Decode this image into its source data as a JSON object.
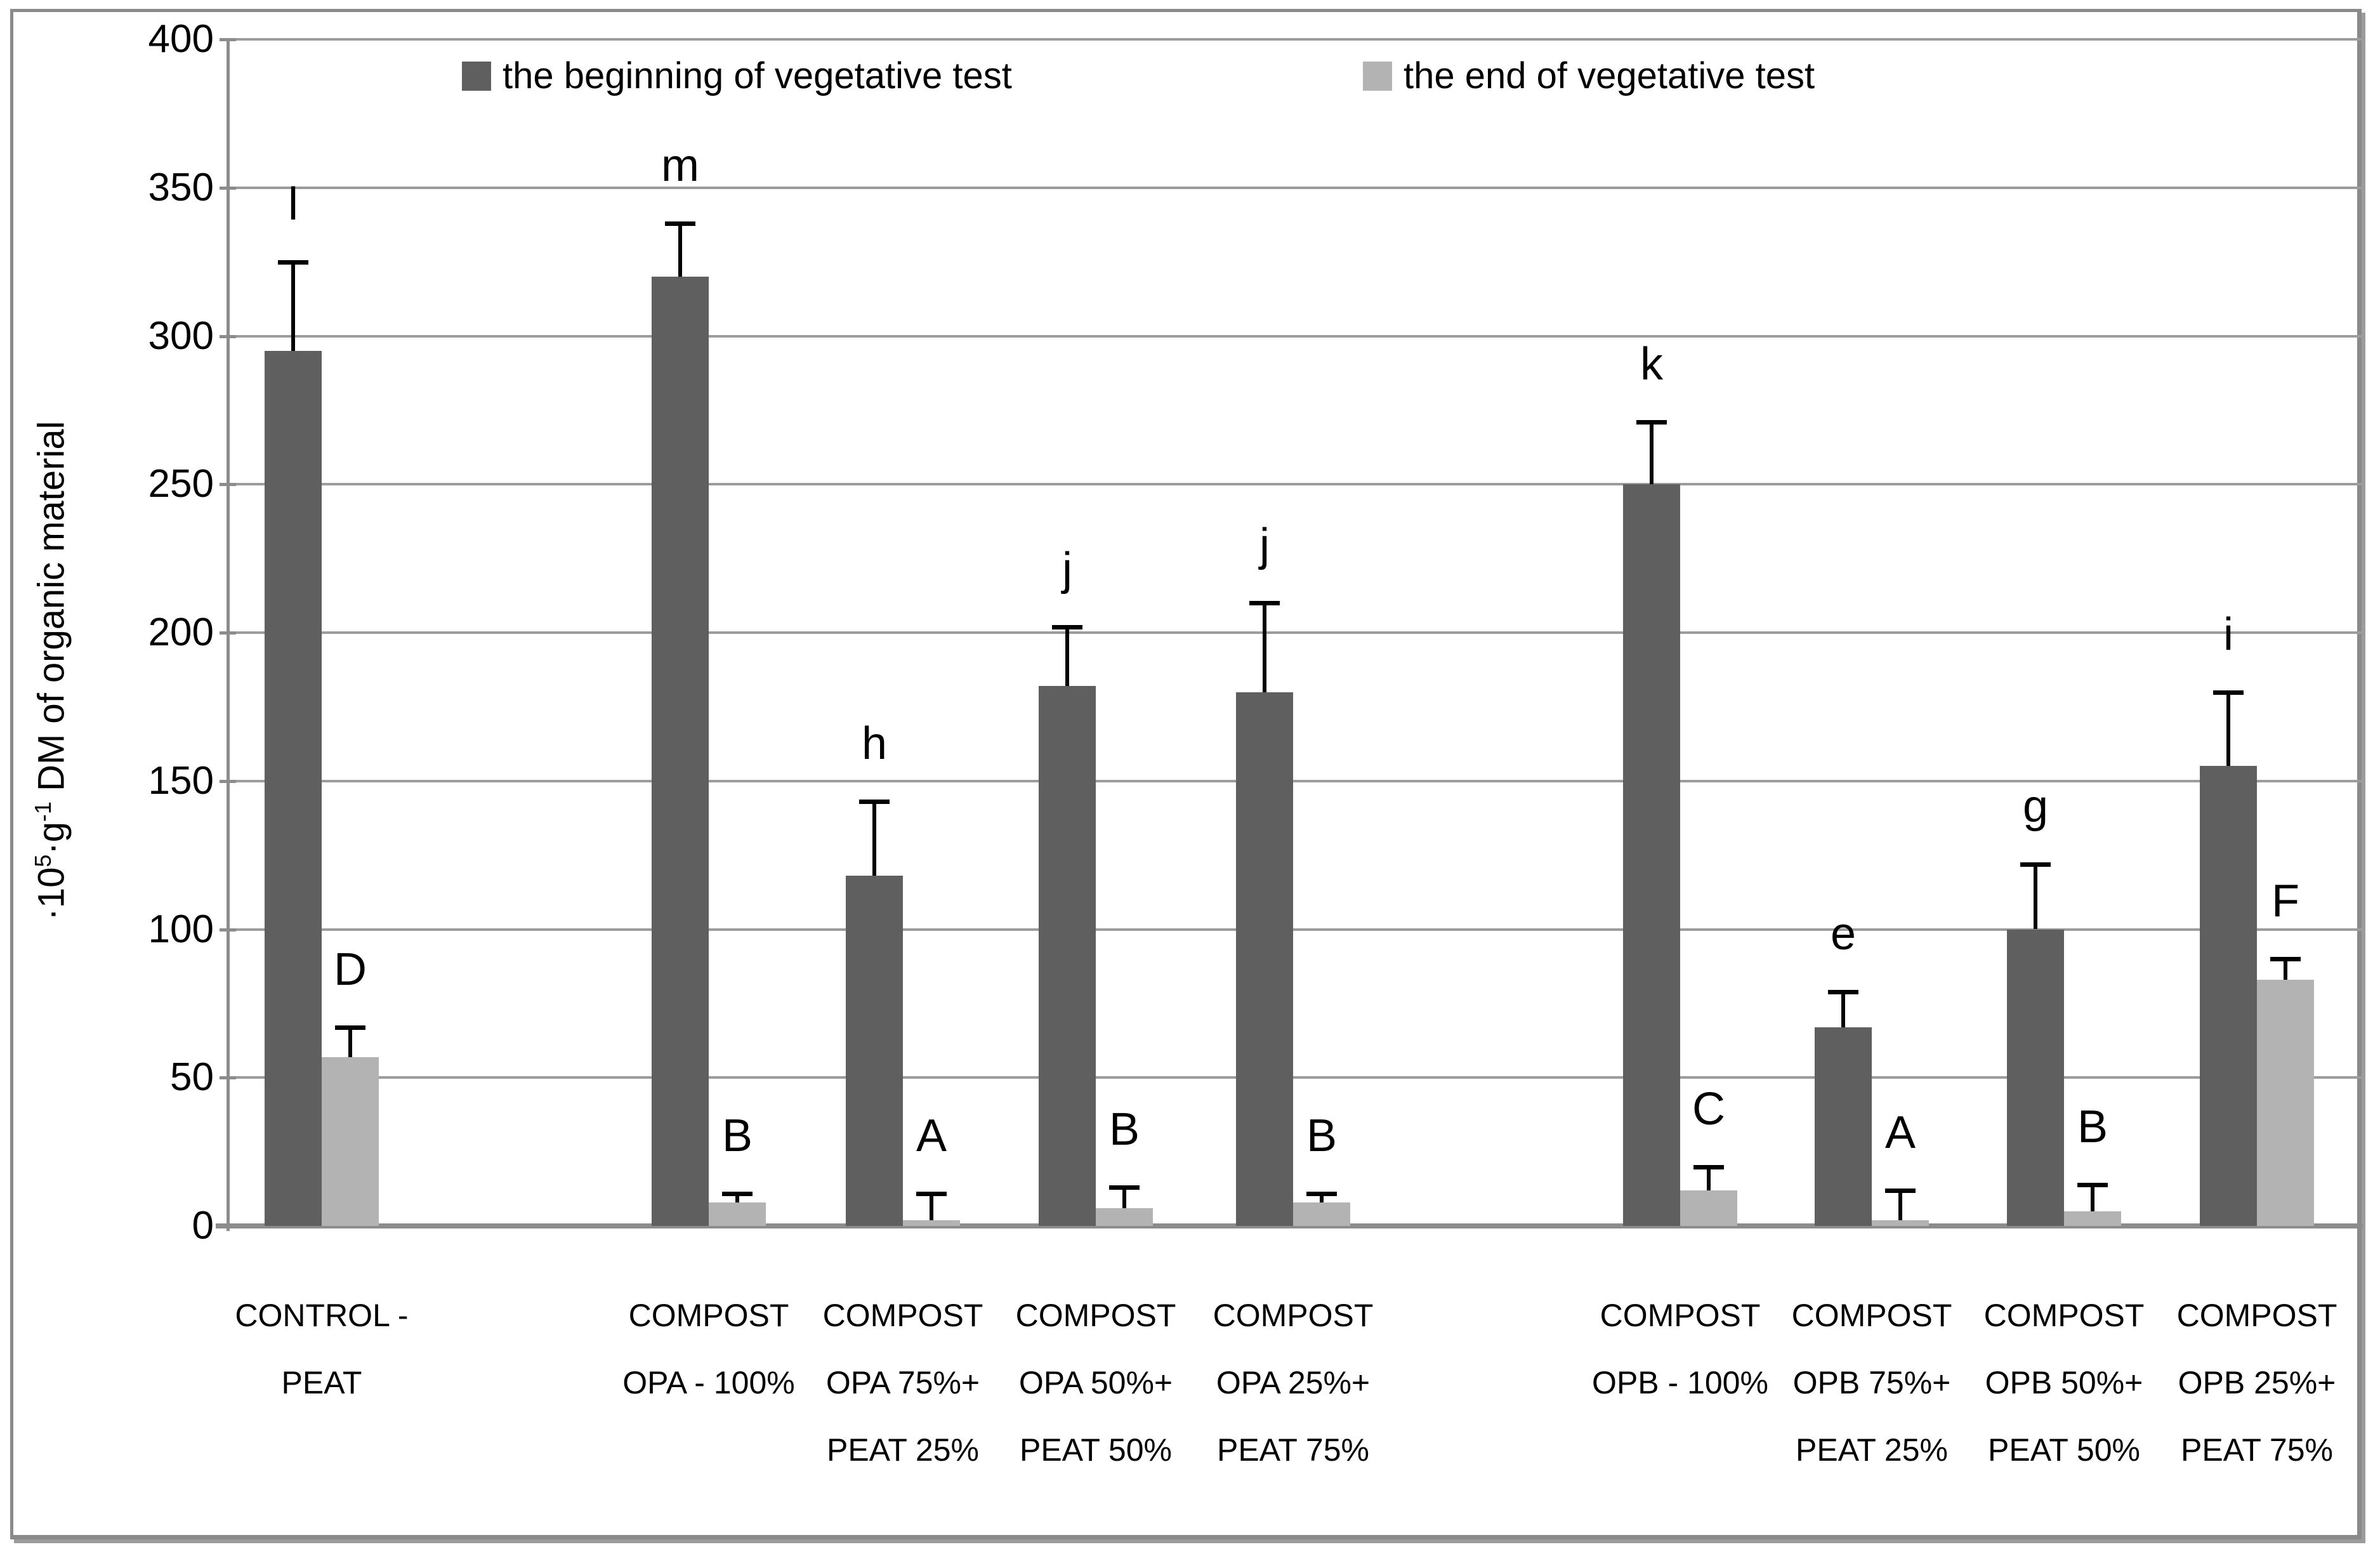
{
  "figure": {
    "background": "#ffffff",
    "frame_color": "#8a8a8a"
  },
  "y_axis": {
    "title": "·10⁵·g⁻¹ DM of organic material",
    "title_parts": {
      "prefix": "·10",
      "sup1": "5",
      "mid": "·g",
      "sup2": "-1",
      "suffix": " DM of organic material"
    },
    "ticks": [
      0,
      50,
      100,
      150,
      200,
      250,
      300,
      350,
      400
    ],
    "max": 400
  },
  "legend": {
    "items": [
      {
        "label": "the beginning of vegetative test",
        "color": "#5f5f5f"
      },
      {
        "label": "the end of vegetative test",
        "color": "#b3b3b3"
      }
    ]
  },
  "chart_data": {
    "type": "bar",
    "title": "",
    "xlabel": "",
    "ylabel": "·10⁵·g⁻¹ DM of organic material",
    "ylim": [
      0,
      400
    ],
    "grid": true,
    "legend_position": "top",
    "categories": [
      {
        "lines": [
          "CONTROL -",
          "PEAT"
        ]
      },
      {
        "lines": [
          "COMPOST",
          "OPA - 100%"
        ]
      },
      {
        "lines": [
          "COMPOST",
          "OPA 75%+",
          "PEAT 25%"
        ]
      },
      {
        "lines": [
          "COMPOST",
          "OPA 50%+",
          "PEAT 50%"
        ]
      },
      {
        "lines": [
          "COMPOST",
          "OPA 25%+",
          "PEAT 75%"
        ]
      },
      {
        "lines": [
          "COMPOST",
          "OPB - 100%"
        ]
      },
      {
        "lines": [
          "COMPOST",
          "OPB 75%+",
          "PEAT 25%"
        ]
      },
      {
        "lines": [
          "COMPOST",
          "OPB 50%+",
          "PEAT 50%"
        ]
      },
      {
        "lines": [
          "COMPOST",
          "OPB 25%+",
          "PEAT 75%"
        ]
      }
    ],
    "series": [
      {
        "name": "the beginning of vegetative test",
        "color": "#5f5f5f",
        "values": [
          295,
          320,
          118,
          182,
          180,
          250,
          67,
          100,
          155
        ],
        "error_plus": [
          30,
          18,
          25,
          20,
          30,
          21,
          12,
          22,
          25
        ],
        "letters": [
          "l",
          "m",
          "h",
          "j",
          "j",
          "k",
          "e",
          "g",
          "i"
        ]
      },
      {
        "name": "the end of vegetative test",
        "color": "#b3b3b3",
        "values": [
          57,
          8,
          2,
          6,
          8,
          12,
          2,
          5,
          83
        ],
        "error_plus": [
          10,
          3,
          9,
          7,
          3,
          8,
          10,
          9,
          7
        ],
        "letters": [
          "D",
          "B",
          "A",
          "B",
          "B",
          "C",
          "A",
          "B",
          "F"
        ]
      }
    ]
  }
}
